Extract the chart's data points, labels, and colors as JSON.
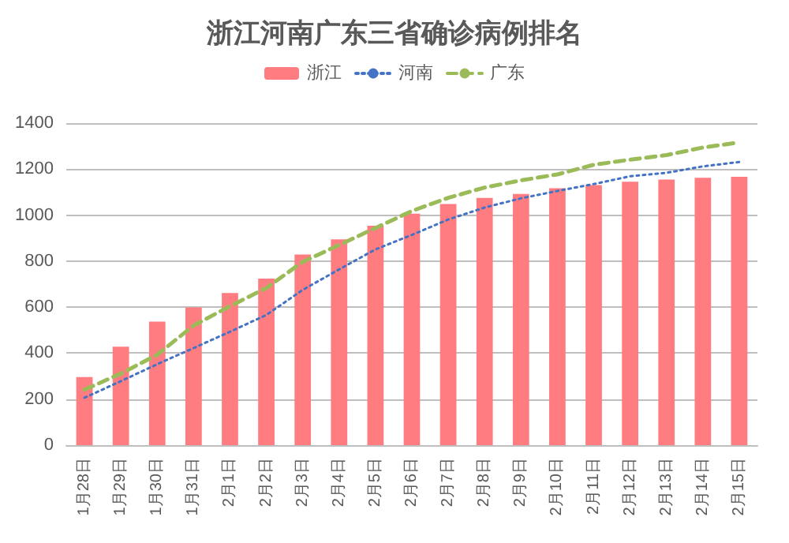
{
  "chart_data": {
    "type": "bar",
    "title": "浙江河南广东三省确诊病例排名",
    "categories": [
      "1月28日",
      "1月29日",
      "1月30日",
      "1月31日",
      "2月1日",
      "2月2日",
      "2月3日",
      "2月4日",
      "2月5日",
      "2月6日",
      "2月7日",
      "2月8日",
      "2月9日",
      "2月10日",
      "2月11日",
      "2月12日",
      "2月13日",
      "2月14日",
      "2月15日"
    ],
    "series": [
      {
        "name": "浙江",
        "color": "#ff7c80",
        "values": [
          296,
          428,
          537,
          599,
          661,
          724,
          829,
          895,
          954,
          1006,
          1048,
          1075,
          1092,
          1117,
          1131,
          1145,
          1155,
          1162,
          1167
        ]
      },
      {
        "name": "河南",
        "type": "line",
        "line_style": "dotted",
        "color": "#4472c4",
        "values": [
          206,
          278,
          352,
          422,
          493,
          566,
          675,
          764,
          851,
          914,
          981,
          1033,
          1073,
          1105,
          1135,
          1169,
          1184,
          1212,
          1231
        ]
      },
      {
        "name": "广东",
        "type": "line",
        "line_style": "dashed",
        "color": "#9bbb59",
        "values": [
          241,
          311,
          393,
          520,
          604,
          683,
          797,
          870,
          944,
          1018,
          1075,
          1120,
          1151,
          1177,
          1219,
          1241,
          1261,
          1294,
          1316
        ]
      }
    ],
    "ylim": [
      0,
      1400
    ],
    "yticks": [
      0,
      200,
      400,
      600,
      800,
      1000,
      1200,
      1400
    ],
    "grid": "y",
    "legend": "top",
    "marker": "none"
  }
}
